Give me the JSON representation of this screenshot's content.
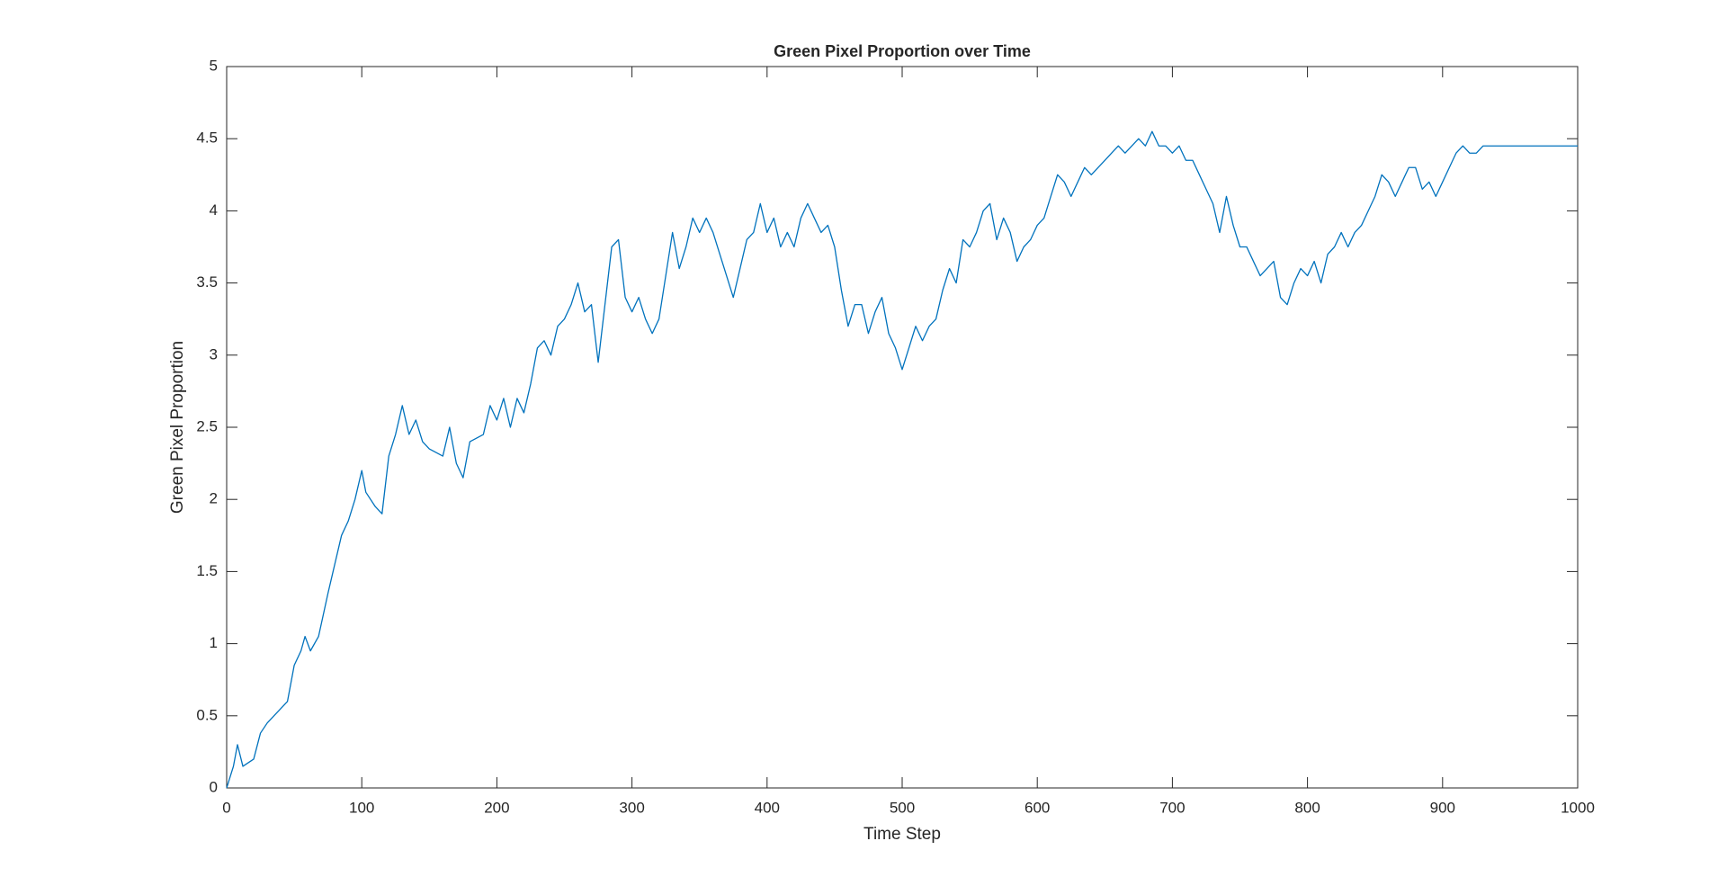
{
  "chart_data": {
    "type": "line",
    "title": "Green Pixel Proportion over Time",
    "xlabel": "Time Step",
    "ylabel": "Green Pixel Proportion",
    "x": [
      0,
      5,
      8,
      12,
      20,
      25,
      30,
      40,
      45,
      50,
      55,
      58,
      62,
      68,
      75,
      80,
      85,
      90,
      95,
      100,
      103,
      110,
      115,
      120,
      125,
      130,
      135,
      140,
      145,
      150,
      160,
      165,
      170,
      175,
      180,
      190,
      195,
      200,
      205,
      210,
      215,
      220,
      225,
      230,
      235,
      240,
      245,
      250,
      255,
      260,
      265,
      270,
      275,
      280,
      285,
      290,
      295,
      300,
      305,
      310,
      315,
      320,
      325,
      330,
      335,
      340,
      345,
      350,
      355,
      360,
      365,
      370,
      375,
      380,
      385,
      390,
      395,
      400,
      405,
      410,
      415,
      420,
      425,
      430,
      435,
      440,
      445,
      450,
      455,
      460,
      465,
      470,
      475,
      480,
      485,
      490,
      495,
      500,
      505,
      510,
      515,
      520,
      525,
      530,
      535,
      540,
      545,
      550,
      555,
      560,
      565,
      570,
      575,
      580,
      585,
      590,
      595,
      600,
      605,
      610,
      615,
      620,
      625,
      630,
      635,
      640,
      645,
      650,
      655,
      660,
      665,
      670,
      675,
      680,
      685,
      690,
      695,
      700,
      705,
      710,
      715,
      720,
      725,
      730,
      735,
      740,
      745,
      750,
      755,
      760,
      765,
      770,
      775,
      780,
      785,
      790,
      795,
      800,
      805,
      810,
      815,
      820,
      825,
      830,
      835,
      840,
      845,
      850,
      855,
      860,
      865,
      870,
      875,
      880,
      885,
      890,
      895,
      900,
      905,
      910,
      915,
      920,
      925,
      930,
      1000
    ],
    "series": [
      {
        "color": "#0072bd",
        "values": [
          0,
          0.15,
          0.3,
          0.15,
          0.2,
          0.38,
          0.45,
          0.55,
          0.6,
          0.85,
          0.95,
          1.05,
          0.95,
          1.05,
          1.35,
          1.55,
          1.75,
          1.85,
          2.0,
          2.2,
          2.05,
          1.95,
          1.9,
          2.3,
          2.45,
          2.65,
          2.45,
          2.55,
          2.4,
          2.35,
          2.3,
          2.5,
          2.25,
          2.15,
          2.4,
          2.45,
          2.65,
          2.55,
          2.7,
          2.5,
          2.7,
          2.6,
          2.8,
          3.05,
          3.1,
          3.0,
          3.2,
          3.25,
          3.35,
          3.5,
          3.3,
          3.35,
          2.95,
          3.35,
          3.75,
          3.8,
          3.4,
          3.3,
          3.4,
          3.25,
          3.15,
          3.25,
          3.55,
          3.85,
          3.6,
          3.75,
          3.95,
          3.85,
          3.95,
          3.85,
          3.7,
          3.55,
          3.4,
          3.6,
          3.8,
          3.85,
          4.05,
          3.85,
          3.95,
          3.75,
          3.85,
          3.75,
          3.95,
          4.05,
          3.95,
          3.85,
          3.9,
          3.75,
          3.45,
          3.2,
          3.35,
          3.35,
          3.15,
          3.3,
          3.4,
          3.15,
          3.05,
          2.9,
          3.05,
          3.2,
          3.1,
          3.2,
          3.25,
          3.45,
          3.6,
          3.5,
          3.8,
          3.75,
          3.85,
          4.0,
          4.05,
          3.8,
          3.95,
          3.85,
          3.65,
          3.75,
          3.8,
          3.9,
          3.95,
          4.1,
          4.25,
          4.2,
          4.1,
          4.2,
          4.3,
          4.25,
          4.3,
          4.35,
          4.4,
          4.45,
          4.4,
          4.45,
          4.5,
          4.45,
          4.55,
          4.45,
          4.45,
          4.4,
          4.45,
          4.35,
          4.35,
          4.25,
          4.15,
          4.05,
          3.85,
          4.1,
          3.9,
          3.75,
          3.75,
          3.65,
          3.55,
          3.6,
          3.65,
          3.4,
          3.35,
          3.5,
          3.6,
          3.55,
          3.65,
          3.5,
          3.7,
          3.75,
          3.85,
          3.75,
          3.85,
          3.9,
          4.0,
          4.1,
          4.25,
          4.2,
          4.1,
          4.2,
          4.3,
          4.3,
          4.15,
          4.2,
          4.1,
          4.2,
          4.3,
          4.4,
          4.45,
          4.4,
          4.4,
          4.45,
          4.45
        ]
      }
    ],
    "xlim": [
      0,
      1000
    ],
    "xticks": [
      0,
      100,
      200,
      300,
      400,
      500,
      600,
      700,
      800,
      900,
      1000
    ],
    "ylim": [
      0,
      5
    ],
    "yticks": [
      0,
      0.5,
      1,
      1.5,
      2,
      2.5,
      3,
      3.5,
      4,
      4.5,
      5
    ]
  }
}
